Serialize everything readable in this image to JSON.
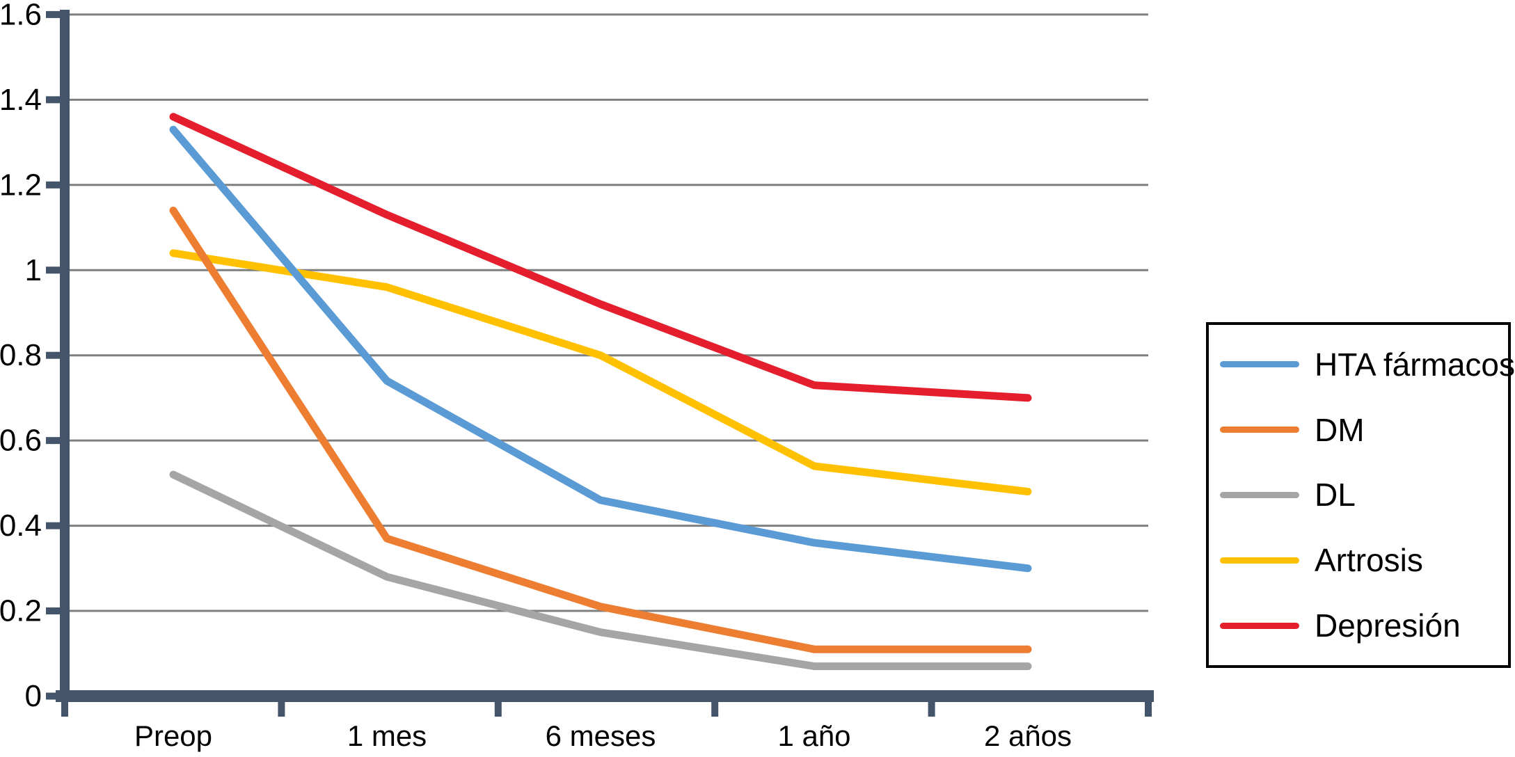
{
  "chart_data": {
    "type": "line",
    "title": "",
    "categories": [
      "Preop",
      "1 mes",
      "6 meses",
      "1 año",
      "2 años"
    ],
    "series": [
      {
        "name": "HTA fármacos",
        "color": "#5B9BD5",
        "z": 2,
        "values": [
          1.33,
          0.74,
          0.46,
          0.36,
          0.3
        ]
      },
      {
        "name": "DM",
        "color": "#ED7D31",
        "z": 3,
        "values": [
          1.14,
          0.37,
          0.21,
          0.11,
          0.11
        ]
      },
      {
        "name": "DL",
        "color": "#A5A5A5",
        "z": 1,
        "values": [
          0.52,
          0.28,
          0.15,
          0.07,
          0.07
        ]
      },
      {
        "name": "Artrosis",
        "color": "#FFC000",
        "z": 0,
        "values": [
          1.04,
          0.96,
          0.8,
          0.54,
          0.48
        ]
      },
      {
        "name": "Depresión",
        "color": "#E41E2D",
        "z": 4,
        "values": [
          1.36,
          1.13,
          0.92,
          0.73,
          0.7
        ]
      }
    ],
    "xlabel": "",
    "ylabel": "",
    "ylim": [
      0,
      1.6
    ],
    "ytick_step": 0.2,
    "ytick_labels": [
      "0",
      "0.2",
      "0.4",
      "0.6",
      "0.8",
      "1",
      "1.2",
      "1.4",
      "1.6"
    ],
    "grid": true,
    "legend_position": "right",
    "axis_color": "#44546A",
    "grid_color": "#7F7F7F"
  }
}
